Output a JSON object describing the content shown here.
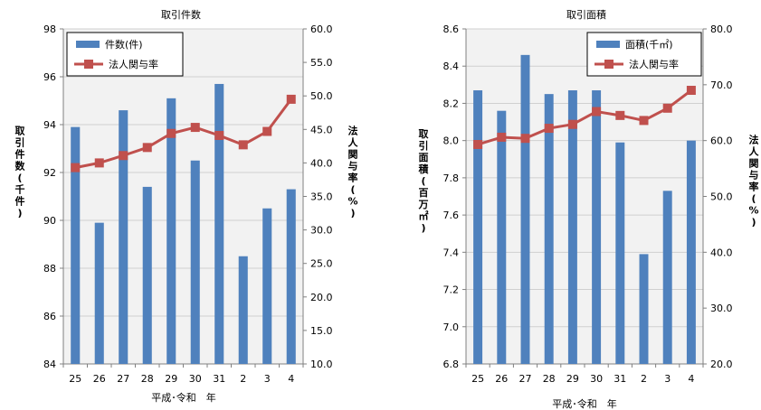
{
  "chart_data": [
    {
      "type": "bar+line",
      "title": "取引件数",
      "xlabel": "平成･令和　年",
      "ylabel": "取引件数(千件)",
      "y2label": "法人関与率(%)",
      "categories": [
        "25",
        "26",
        "27",
        "28",
        "29",
        "30",
        "31",
        "2",
        "3",
        "4"
      ],
      "ylim": [
        84,
        98
      ],
      "yticks": [
        "84",
        "86",
        "88",
        "90",
        "92",
        "94",
        "96",
        "98"
      ],
      "y2lim": [
        10,
        60
      ],
      "y2ticks": [
        "10.0",
        "15.0",
        "20.0",
        "25.0",
        "30.0",
        "35.0",
        "40.0",
        "45.0",
        "50.0",
        "55.0",
        "60.0"
      ],
      "series": [
        {
          "name": "件数(件)",
          "kind": "bar",
          "axis": "left",
          "color": "#4f81bd",
          "values": [
            93.9,
            89.9,
            94.6,
            91.4,
            95.1,
            92.5,
            95.7,
            88.5,
            90.5,
            91.3
          ]
        },
        {
          "name": "法人関与率",
          "kind": "line",
          "axis": "right",
          "color": "#c0504d",
          "values": [
            39.3,
            40.0,
            41.1,
            42.3,
            44.4,
            45.3,
            44.1,
            42.7,
            44.7,
            49.5
          ]
        }
      ],
      "legend": "top-left",
      "plot_bg": "#f2f2f2",
      "grid": true
    },
    {
      "type": "bar+line",
      "title": "取引面積",
      "xlabel": "平成･令和　年",
      "ylabel": "取引面積(百万㎡)",
      "y2label": "法人関与率(%)",
      "categories": [
        "25",
        "26",
        "27",
        "28",
        "29",
        "30",
        "31",
        "2",
        "3",
        "4"
      ],
      "ylim": [
        6.8,
        8.6
      ],
      "yticks": [
        "6.8",
        "7.0",
        "7.2",
        "7.4",
        "7.6",
        "7.8",
        "8.0",
        "8.2",
        "8.4",
        "8.6"
      ],
      "y2lim": [
        20,
        80
      ],
      "y2ticks": [
        "20.0",
        "30.0",
        "40.0",
        "50.0",
        "60.0",
        "70.0",
        "80.0"
      ],
      "series": [
        {
          "name": "面積(千㎡)",
          "kind": "bar",
          "axis": "left",
          "color": "#4f81bd",
          "values": [
            8.27,
            8.16,
            8.46,
            8.25,
            8.27,
            8.27,
            7.99,
            7.39,
            7.73,
            8.0
          ]
        },
        {
          "name": "法人関与率",
          "kind": "line",
          "axis": "right",
          "color": "#c0504d",
          "values": [
            59.3,
            60.6,
            60.4,
            62.2,
            62.9,
            65.2,
            64.5,
            63.6,
            65.8,
            69.0
          ]
        }
      ],
      "legend": "top-right",
      "plot_bg": "#f2f2f2",
      "grid": true
    }
  ]
}
